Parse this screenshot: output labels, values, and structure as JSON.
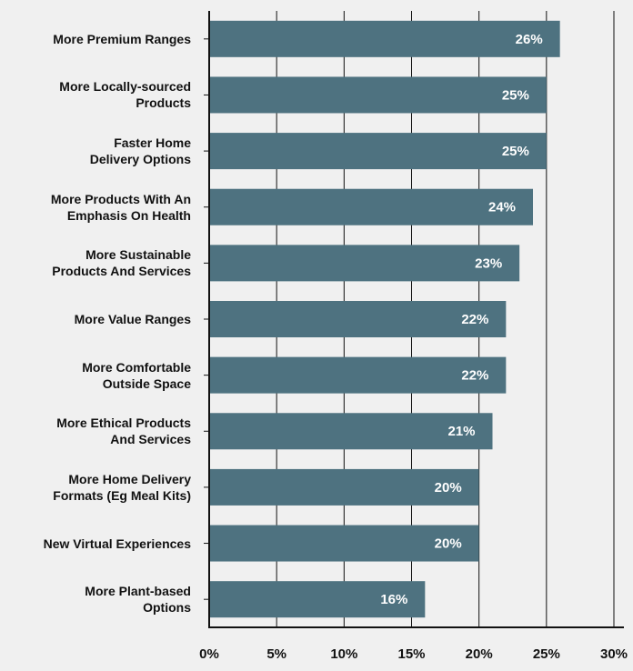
{
  "chart_data": {
    "type": "bar",
    "orientation": "horizontal",
    "categories": [
      "More Premium Ranges",
      "More Locally-sourced\nProducts",
      "Faster Home\nDelivery Options",
      "More Products With An\nEmphasis On Health",
      "More Sustainable\nProducts And Services",
      "More Value Ranges",
      "More Comfortable\nOutside Space",
      "More Ethical Products\nAnd Services",
      "More Home Delivery\nFormats (Eg Meal Kits)",
      "New Virtual Experiences",
      "More Plant-based\nOptions"
    ],
    "values": [
      26,
      25,
      25,
      24,
      23,
      22,
      22,
      21,
      20,
      20,
      16
    ],
    "value_labels": [
      "26%",
      "25%",
      "25%",
      "24%",
      "23%",
      "22%",
      "22%",
      "21%",
      "20%",
      "20%",
      "16%"
    ],
    "color": "#4e7280",
    "xlim": [
      0,
      30
    ],
    "xticks": [
      {
        "value": 0,
        "label": "0%"
      },
      {
        "value": 5,
        "label": "5%"
      },
      {
        "value": 10,
        "label": "10%"
      },
      {
        "value": 15,
        "label": "15%"
      },
      {
        "value": 20,
        "label": "20%"
      },
      {
        "value": 25,
        "label": "25%"
      },
      {
        "value": 30,
        "label": "30%"
      }
    ],
    "grid": true
  }
}
